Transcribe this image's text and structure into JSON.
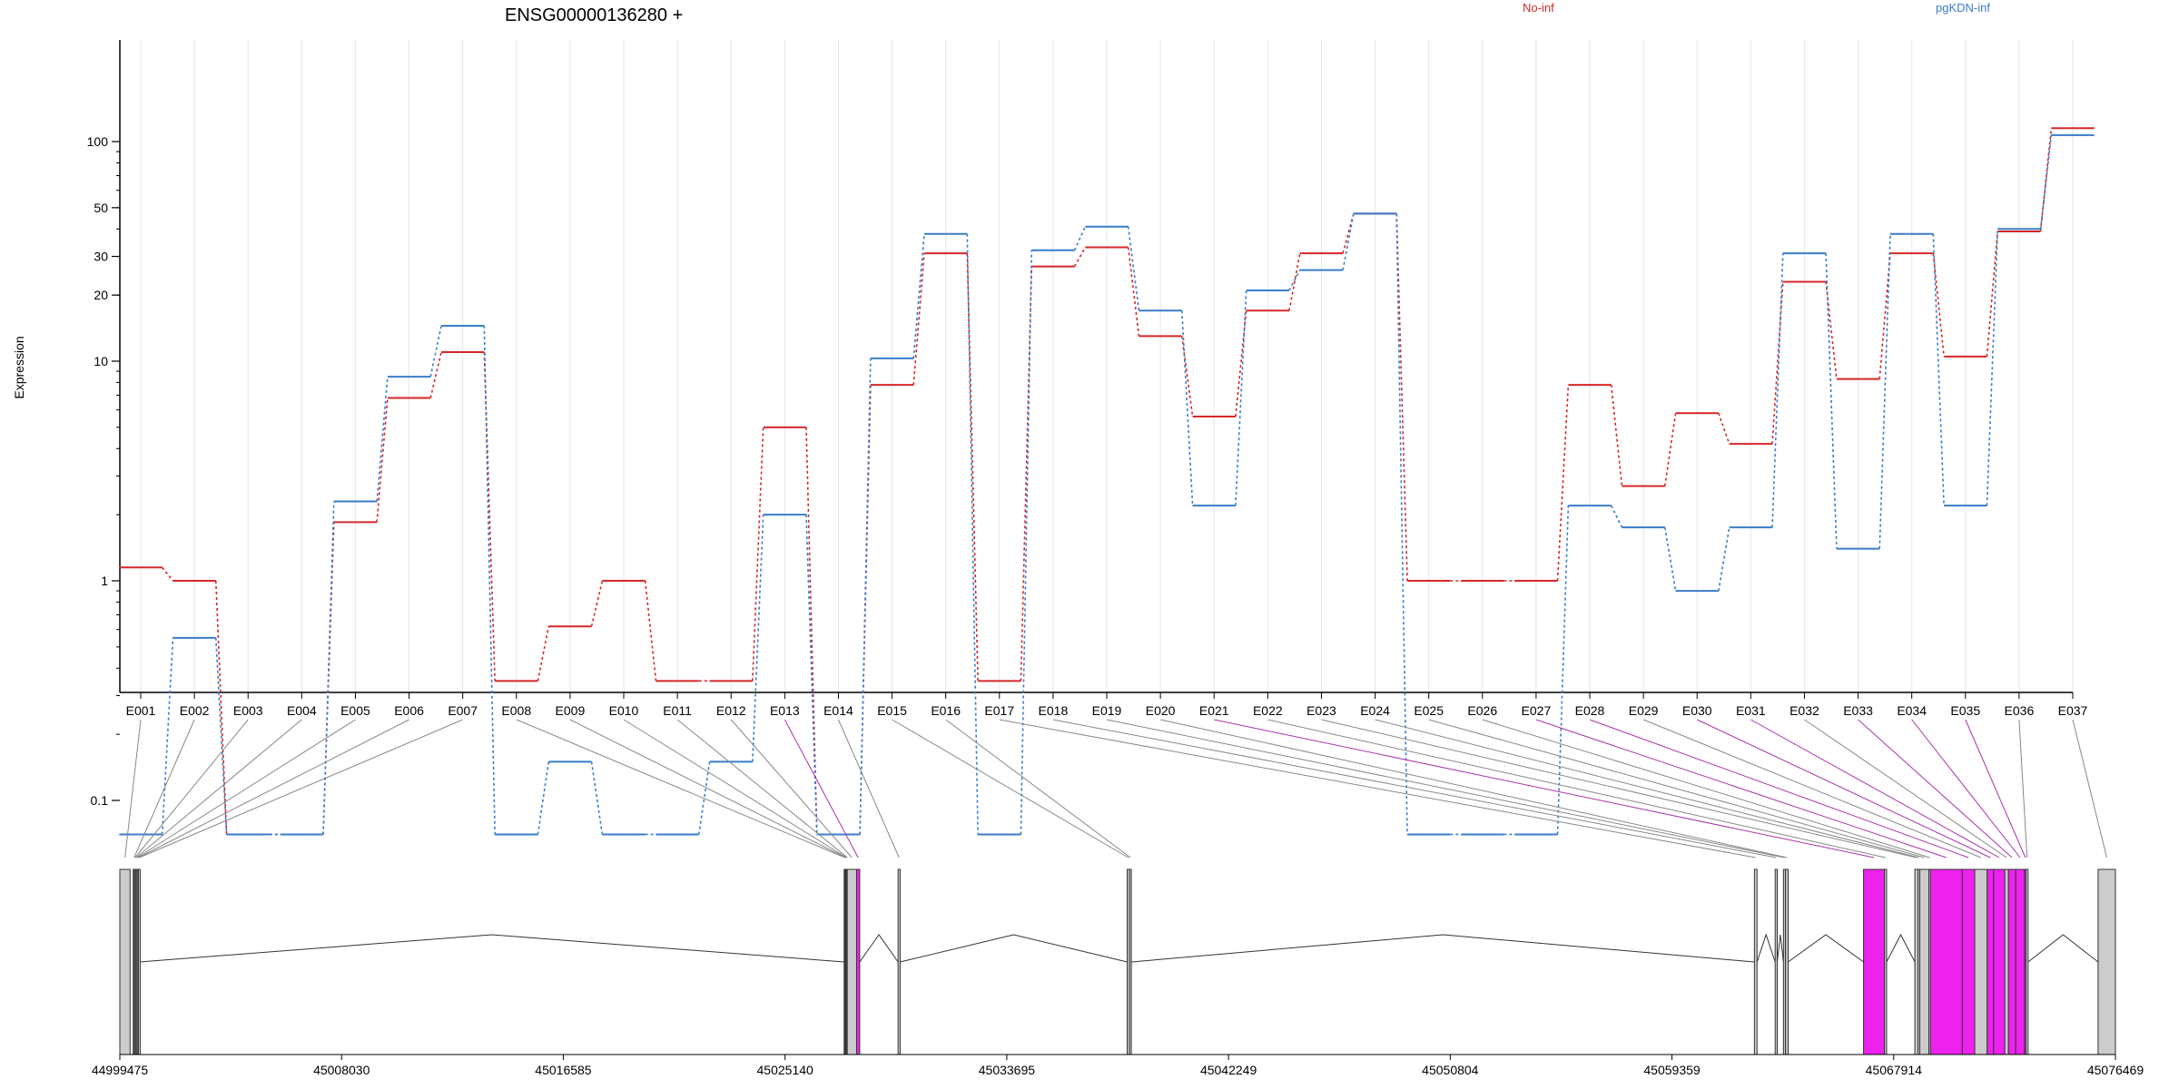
{
  "title": "ENSG00000136280 +",
  "legend": [
    {
      "label": "No-inf",
      "color": "#d62728"
    },
    {
      "label": "pgKDN-inf",
      "color": "#3a7dc9"
    }
  ],
  "chart_data": {
    "type": "line",
    "title": "ENSG00000136280 +",
    "ylabel": "Expression",
    "xlabel": "",
    "y_scale": "log",
    "y_ticks": [
      "0.1",
      "1",
      "10",
      "20",
      "30",
      "50",
      "100"
    ],
    "categories": [
      "E001",
      "E002",
      "E003",
      "E004",
      "E005",
      "E006",
      "E007",
      "E008",
      "E009",
      "E010",
      "E011",
      "E012",
      "E013",
      "E014",
      "E015",
      "E016",
      "E017",
      "E018",
      "E019",
      "E020",
      "E021",
      "E022",
      "E023",
      "E024",
      "E025",
      "E026",
      "E027",
      "E028",
      "E029",
      "E030",
      "E031",
      "E032",
      "E033",
      "E034",
      "E035",
      "E036",
      "E037"
    ],
    "series": [
      {
        "name": "No-inf",
        "color": "#d62728",
        "values": [
          1.15,
          1.0,
          0.07,
          0.07,
          1.85,
          6.8,
          11.0,
          0.35,
          0.62,
          1.0,
          0.35,
          0.35,
          5.0,
          0.07,
          7.8,
          31.0,
          0.35,
          27.0,
          33.0,
          13.0,
          5.6,
          17.0,
          31.0,
          47.0,
          1.0,
          1.0,
          1.0,
          7.8,
          2.7,
          5.8,
          4.2,
          23.0,
          8.3,
          31.0,
          10.5,
          39.0,
          115.0
        ]
      },
      {
        "name": "pgKDN-inf",
        "color": "#3a7dc9",
        "values": [
          0.07,
          0.55,
          0.07,
          0.07,
          2.3,
          8.5,
          14.5,
          0.07,
          0.15,
          0.07,
          0.07,
          0.15,
          2.0,
          0.07,
          10.3,
          38.0,
          0.07,
          32.0,
          41.0,
          17.0,
          2.2,
          21.0,
          26.0,
          47.0,
          0.07,
          0.07,
          0.07,
          2.2,
          1.75,
          0.9,
          1.75,
          31.0,
          1.4,
          38.0,
          2.2,
          40.0,
          107.0
        ]
      }
    ],
    "grid": true,
    "legend_position": "top-right"
  },
  "gene_model": {
    "genomic_ticks": [
      "44999475",
      "45008030",
      "45016585",
      "45025140",
      "45033695",
      "45042249",
      "45050804",
      "45059359",
      "45067914",
      "45076469"
    ],
    "genomic_start": 44999475,
    "genomic_end": 45076469,
    "highlight_color": "#ee22ee",
    "exon_color": "#cccccc",
    "exons": [
      {
        "id": "E001",
        "start": 44999475,
        "end": 44999870,
        "hl": false
      },
      {
        "id": "E002",
        "start": 44999990,
        "end": 45000030,
        "hl": false
      },
      {
        "id": "E003",
        "start": 45000030,
        "end": 45000070,
        "hl": false
      },
      {
        "id": "E004",
        "start": 45000070,
        "end": 45000110,
        "hl": false
      },
      {
        "id": "E005",
        "start": 45000110,
        "end": 45000150,
        "hl": false
      },
      {
        "id": "E006",
        "start": 45000150,
        "end": 45000190,
        "hl": false
      },
      {
        "id": "E007",
        "start": 45000190,
        "end": 45000230,
        "hl": false
      },
      {
        "id": "E008",
        "start": 45027420,
        "end": 45027450,
        "hl": false
      },
      {
        "id": "E009",
        "start": 45027450,
        "end": 45027480,
        "hl": false
      },
      {
        "id": "E010",
        "start": 45027480,
        "end": 45027510,
        "hl": false
      },
      {
        "id": "E011",
        "start": 45027510,
        "end": 45027540,
        "hl": false
      },
      {
        "id": "E012",
        "start": 45027540,
        "end": 45027900,
        "hl": false
      },
      {
        "id": "E013",
        "start": 45027900,
        "end": 45028020,
        "hl": true
      },
      {
        "id": "E014",
        "start": 45029500,
        "end": 45029580,
        "hl": false
      },
      {
        "id": "E015",
        "start": 45038340,
        "end": 45038430,
        "hl": false
      },
      {
        "id": "E016",
        "start": 45038430,
        "end": 45038500,
        "hl": false
      },
      {
        "id": "E017",
        "start": 45062540,
        "end": 45062640,
        "hl": false
      },
      {
        "id": "E018",
        "start": 45063340,
        "end": 45063420,
        "hl": false
      },
      {
        "id": "E019",
        "start": 45063660,
        "end": 45063740,
        "hl": false
      },
      {
        "id": "E020",
        "start": 45063740,
        "end": 45063840,
        "hl": false
      },
      {
        "id": "E021",
        "start": 45066750,
        "end": 45067560,
        "hl": true
      },
      {
        "id": "E022",
        "start": 45067560,
        "end": 45067640,
        "hl": false
      },
      {
        "id": "E023",
        "start": 45068730,
        "end": 45068850,
        "hl": false
      },
      {
        "id": "E024",
        "start": 45068850,
        "end": 45068920,
        "hl": false
      },
      {
        "id": "E025",
        "start": 45068920,
        "end": 45069270,
        "hl": false
      },
      {
        "id": "E026",
        "start": 45069270,
        "end": 45069330,
        "hl": false
      },
      {
        "id": "E027",
        "start": 45069330,
        "end": 45070560,
        "hl": true
      },
      {
        "id": "E028",
        "start": 45070560,
        "end": 45071040,
        "hl": true
      },
      {
        "id": "E029",
        "start": 45071040,
        "end": 45071520,
        "hl": false
      },
      {
        "id": "E030",
        "start": 45071520,
        "end": 45071770,
        "hl": true
      },
      {
        "id": "E031",
        "start": 45071770,
        "end": 45072200,
        "hl": true
      },
      {
        "id": "E032",
        "start": 45072200,
        "end": 45072340,
        "hl": false
      },
      {
        "id": "E033",
        "start": 45072340,
        "end": 45072620,
        "hl": true
      },
      {
        "id": "E034",
        "start": 45072620,
        "end": 45072960,
        "hl": true
      },
      {
        "id": "E035",
        "start": 45072960,
        "end": 45073020,
        "hl": true
      },
      {
        "id": "E036",
        "start": 45073020,
        "end": 45073100,
        "hl": false
      },
      {
        "id": "E037",
        "start": 45075800,
        "end": 45076469,
        "hl": false
      }
    ]
  }
}
